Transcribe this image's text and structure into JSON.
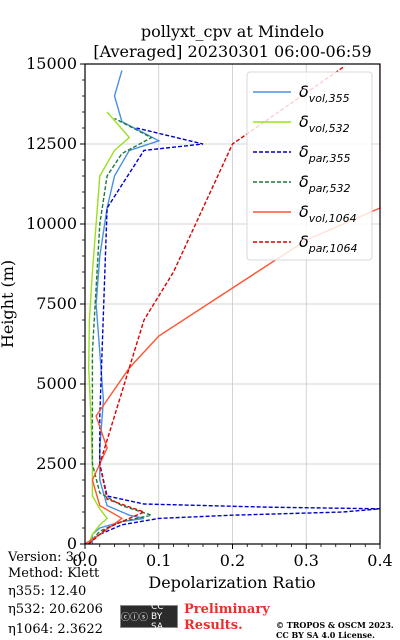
{
  "chart_data": {
    "type": "line",
    "title": "pollyxt_cpv at Mindelo",
    "subtitle": "[Averaged] 20230301 06:00-06:59",
    "xlabel": "Depolarization Ratio",
    "ylabel": "Height (m)",
    "xlim": [
      0,
      0.4
    ],
    "ylim": [
      0,
      15000
    ],
    "xticks": [
      "0.0",
      "0.1",
      "0.2",
      "0.3",
      "0.4"
    ],
    "yticks": [
      "0",
      "2500",
      "5000",
      "7500",
      "10000",
      "12500",
      "15000"
    ],
    "grid": true,
    "legend_position": "top-right",
    "series": [
      {
        "name": "δvol,355",
        "base": "δ",
        "sub": "vol,355",
        "color": "#4a90e2",
        "dash": "solid",
        "points": [
          [
            0.01,
            0
          ],
          [
            0.01,
            300
          ],
          [
            0.02,
            500
          ],
          [
            0.05,
            700
          ],
          [
            0.08,
            800
          ],
          [
            0.06,
            900
          ],
          [
            0.03,
            1200
          ],
          [
            0.02,
            2000
          ],
          [
            0.02,
            3000
          ],
          [
            0.025,
            4500
          ],
          [
            0.02,
            6000
          ],
          [
            0.015,
            7500
          ],
          [
            0.02,
            9000
          ],
          [
            0.03,
            10500
          ],
          [
            0.04,
            11500
          ],
          [
            0.06,
            12300
          ],
          [
            0.1,
            12600
          ],
          [
            0.05,
            13200
          ],
          [
            0.04,
            14000
          ],
          [
            0.05,
            14800
          ]
        ]
      },
      {
        "name": "δvol,532",
        "base": "δ",
        "sub": "vol,532",
        "color": "#9be01f",
        "dash": "solid",
        "points": [
          [
            0.005,
            0
          ],
          [
            0.01,
            300
          ],
          [
            0.02,
            600
          ],
          [
            0.03,
            800
          ],
          [
            0.02,
            1100
          ],
          [
            0.01,
            1500
          ],
          [
            0.01,
            2500
          ],
          [
            0.008,
            4000
          ],
          [
            0.005,
            5500
          ],
          [
            0.006,
            7000
          ],
          [
            0.01,
            8500
          ],
          [
            0.015,
            10000
          ],
          [
            0.02,
            11500
          ],
          [
            0.04,
            12300
          ],
          [
            0.06,
            12700
          ],
          [
            0.03,
            13500
          ]
        ]
      },
      {
        "name": "δpar,355",
        "base": "δ",
        "sub": "par,355",
        "color": "#0000cc",
        "dash": "dashed",
        "points": [
          [
            0.0,
            0
          ],
          [
            0.02,
            300
          ],
          [
            0.05,
            600
          ],
          [
            0.1,
            800
          ],
          [
            0.2,
            900
          ],
          [
            0.35,
            1000
          ],
          [
            0.4,
            1100
          ],
          [
            0.25,
            1150
          ],
          [
            0.08,
            1250
          ],
          [
            0.03,
            1500
          ],
          [
            0.02,
            2500
          ],
          [
            0.02,
            4000
          ],
          [
            0.03,
            10500
          ],
          [
            0.08,
            12300
          ],
          [
            0.16,
            12500
          ],
          [
            0.07,
            13000
          ]
        ]
      },
      {
        "name": "δpar,532",
        "base": "δ",
        "sub": "par,532",
        "color": "#1a7a3a",
        "dash": "dashed",
        "points": [
          [
            0.005,
            0
          ],
          [
            0.02,
            400
          ],
          [
            0.05,
            700
          ],
          [
            0.09,
            900
          ],
          [
            0.05,
            1200
          ],
          [
            0.02,
            1600
          ],
          [
            0.01,
            2500
          ],
          [
            0.01,
            4000
          ],
          [
            0.01,
            6000
          ],
          [
            0.015,
            8000
          ],
          [
            0.02,
            10000
          ],
          [
            0.03,
            11500
          ],
          [
            0.05,
            12200
          ],
          [
            0.09,
            12700
          ],
          [
            0.04,
            13300
          ]
        ]
      },
      {
        "name": "δvol,1064",
        "base": "δ",
        "sub": "vol,1064",
        "color": "#ff5533",
        "dash": "solid",
        "points": [
          [
            0.0,
            0
          ],
          [
            0.02,
            300
          ],
          [
            0.05,
            800
          ],
          [
            0.02,
            1200
          ],
          [
            0.01,
            2000
          ],
          [
            0.03,
            3000
          ],
          [
            0.015,
            4000
          ],
          [
            0.06,
            5500
          ],
          [
            0.1,
            6500
          ],
          [
            0.2,
            8000
          ],
          [
            0.3,
            9500
          ],
          [
            0.4,
            10500
          ],
          [
            0.4,
            12000
          ],
          [
            0.4,
            13500
          ],
          [
            0.4,
            15000
          ]
        ]
      },
      {
        "name": "δpar,1064",
        "base": "δ",
        "sub": "par,1064",
        "color": "#dd0000",
        "dash": "dashed",
        "points": [
          [
            0.005,
            0
          ],
          [
            0.03,
            500
          ],
          [
            0.08,
            1000
          ],
          [
            0.03,
            1400
          ],
          [
            0.02,
            2500
          ],
          [
            0.04,
            4000
          ],
          [
            0.08,
            7000
          ],
          [
            0.12,
            8500
          ],
          [
            0.2,
            12500
          ],
          [
            0.35,
            14900
          ]
        ]
      }
    ]
  },
  "info": {
    "version": "Version: 3.0",
    "method": "Method: Klett",
    "eta355": "η355:  12.40",
    "eta532": "η532: 20.6206",
    "eta1064": "η1064: 2.3622"
  },
  "footer": {
    "cc_badge": "CC BY SA",
    "prelim_line1": "Preliminary",
    "prelim_line2": "Results.",
    "copyright_line1": "© TROPOS & OSCM 2023.",
    "copyright_line2": "CC BY SA 4.0 License."
  }
}
